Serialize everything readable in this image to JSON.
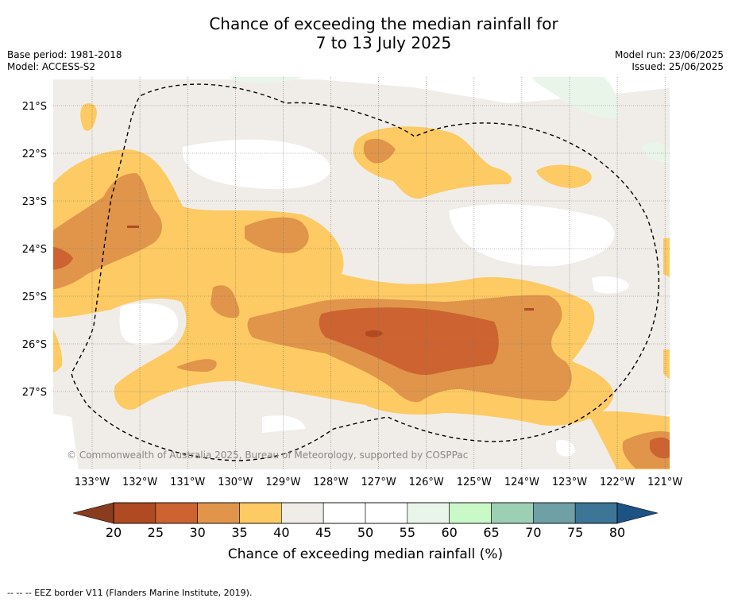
{
  "title_line1": "Chance of exceeding the median rainfall for",
  "title_line2": "7 to 13 July 2025",
  "base_period": "Base period: 1981-2018",
  "model": "Model: ACCESS-S2",
  "model_run": "Model run: 23/06/2025",
  "issued": "Issued: 25/06/2025",
  "copyright": "© Commonwealth of Australia 2025, Bureau of Meteorology, supported by COSPPac",
  "lat_labels": [
    "21°S",
    "22°S",
    "23°S",
    "24°S",
    "25°S",
    "26°S",
    "27°S"
  ],
  "lon_labels": [
    "133°W",
    "132°W",
    "131°W",
    "130°W",
    "129°W",
    "128°W",
    "127°W",
    "126°W",
    "125°W",
    "124°W",
    "123°W",
    "122°W",
    "121°W"
  ],
  "colorbar": {
    "title": "Chance of exceeding median rainfall (%)",
    "ticks": [
      "20",
      "25",
      "30",
      "35",
      "40",
      "45",
      "50",
      "55",
      "60",
      "65",
      "70",
      "75",
      "80"
    ],
    "colors": [
      "#b04a23",
      "#cc6330",
      "#e0954a",
      "#fdca63",
      "#f0ede8",
      "#ffffff",
      "#ffffff",
      "#eaf5e9",
      "#c9f9c7",
      "#9dcfb5",
      "#6ea0a6",
      "#3d7596"
    ],
    "under_color": "#8a3c1e",
    "over_color": "#1d5284"
  },
  "footnote": "-- -- -- EEZ border V11 (Flanders Marine Institute, 2019).",
  "colors": {
    "c20": "#b04a23",
    "c25": "#cc6330",
    "c30": "#e0954a",
    "c35": "#fdca63",
    "c40": "#f0ede8",
    "c55": "#eaf5e9"
  }
}
